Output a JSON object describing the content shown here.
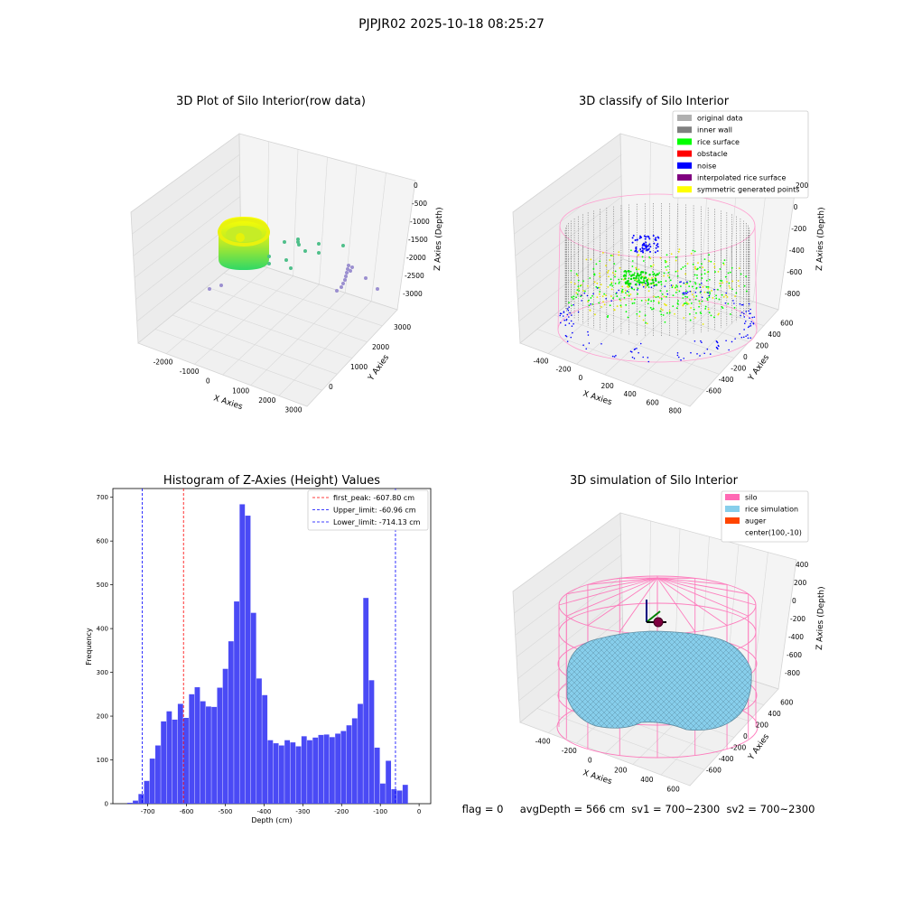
{
  "figure": {
    "suptitle": "PJPJR02 2025-10-18 08:25:27",
    "footer_text": "flag = 0     avgDepth = 566 cm  sv1 = 700~2300  sv2 = 700~2300"
  },
  "colors": {
    "pink": "#ff69b4",
    "grey_dark": "#808080",
    "grey_light": "#b0b0b0",
    "green": "#00ff00",
    "blue": "#0000ff",
    "yellow": "#ffff00",
    "purple": "#800080",
    "red": "#ff0000",
    "skyblue": "#87ceeb",
    "orange": "#ff4500",
    "hist_blue": "#4a4af5"
  },
  "chart_data": [
    {
      "type": "scatter3d",
      "title": "3D Plot of Silo Interior(row data)",
      "xlabel": "X Axies",
      "ylabel": "Y Axies",
      "zlabel": "Z Axies (Depth)",
      "xticks": [
        "-2000",
        "-1000",
        "0",
        "1000",
        "2000",
        "3000"
      ],
      "yticks": [
        "0",
        "1000",
        "2000",
        "3000"
      ],
      "zticks": [
        "0",
        "-500",
        "-1000",
        "-1500",
        "-2000",
        "-2500",
        "-3000"
      ],
      "series": [
        {
          "color": "green-yellow",
          "description_points": "dense ring cluster"
        },
        {
          "color": "teal",
          "points": 12
        },
        {
          "color": "purple",
          "points": 14
        }
      ]
    },
    {
      "type": "scatter3d",
      "title": "3D classify of Silo Interior",
      "xlabel": "X Axies",
      "ylabel": "Y Axies",
      "zlabel": "Z Axies (Depth)",
      "xticks": [
        "-400",
        "-200",
        "0",
        "200",
        "400",
        "600",
        "800"
      ],
      "yticks": [
        "-600",
        "-400",
        "-200",
        "0",
        "200",
        "400",
        "600"
      ],
      "zticks": [
        "200",
        "0",
        "-200",
        "-400",
        "-600",
        "-800"
      ],
      "legend_position": "top-right",
      "legend": [
        {
          "label": "original data",
          "color": "#b0b0b0"
        },
        {
          "label": "inner wall",
          "color": "#808080"
        },
        {
          "label": "rice surface",
          "color": "#00ff00"
        },
        {
          "label": "obstacle",
          "color": "#ff0000"
        },
        {
          "label": "noise",
          "color": "#0000ff"
        },
        {
          "label": "interpolated rice surface",
          "color": "#800080"
        },
        {
          "label": "symmetric generated points",
          "color": "#ffff00"
        }
      ]
    },
    {
      "type": "bar",
      "title": "Histogram of Z-Axies (Height) Values",
      "xlabel": "Depth (cm)",
      "ylabel": "Frequency",
      "xlim": [
        -790,
        30
      ],
      "ylim": [
        0,
        720
      ],
      "xticks": [
        -700,
        -600,
        -500,
        -400,
        -300,
        -200,
        -100,
        0
      ],
      "yticks": [
        0,
        100,
        200,
        300,
        400,
        500,
        600,
        700
      ],
      "bin_width": 14.5,
      "bin_start": -753,
      "values": [
        2,
        7,
        22,
        52,
        103,
        133,
        188,
        211,
        192,
        228,
        196,
        250,
        266,
        234,
        222,
        221,
        265,
        308,
        371,
        462,
        684,
        658,
        436,
        286,
        248,
        145,
        138,
        133,
        145,
        140,
        131,
        154,
        145,
        151,
        157,
        158,
        152,
        160,
        166,
        179,
        195,
        228,
        470,
        282,
        128,
        46,
        98,
        33,
        30,
        43
      ],
      "lines": [
        {
          "label": "first_peak: -607.80 cm",
          "x": -607.8,
          "color": "#ff0000"
        },
        {
          "label": "Upper_limit: -60.96 cm",
          "x": -60.96,
          "color": "#0000ff"
        },
        {
          "label": "Lower_limit: -714.13 cm",
          "x": -714.13,
          "color": "#0000ff"
        }
      ],
      "legend_position": "top-right"
    },
    {
      "type": "surface3d",
      "title": "3D simulation of Silo Interior",
      "xlabel": "X Axies",
      "ylabel": "Y Axies",
      "zlabel": "Z Axies (Depth)",
      "xticks": [
        "-400",
        "-200",
        "0",
        "200",
        "400",
        "600"
      ],
      "yticks": [
        "-600",
        "-400",
        "-200",
        "0",
        "200",
        "400",
        "600"
      ],
      "zticks": [
        "400",
        "200",
        "0",
        "-200",
        "-400",
        "-600",
        "-800"
      ],
      "legend_position": "top-right",
      "legend": [
        {
          "label": "silo",
          "color": "#ff69b4"
        },
        {
          "label": "rice simulation",
          "color": "#87ceeb"
        },
        {
          "label": "auger",
          "color": "#ff4500"
        },
        {
          "label": "center(100,-10)",
          "color": ""
        }
      ]
    }
  ]
}
